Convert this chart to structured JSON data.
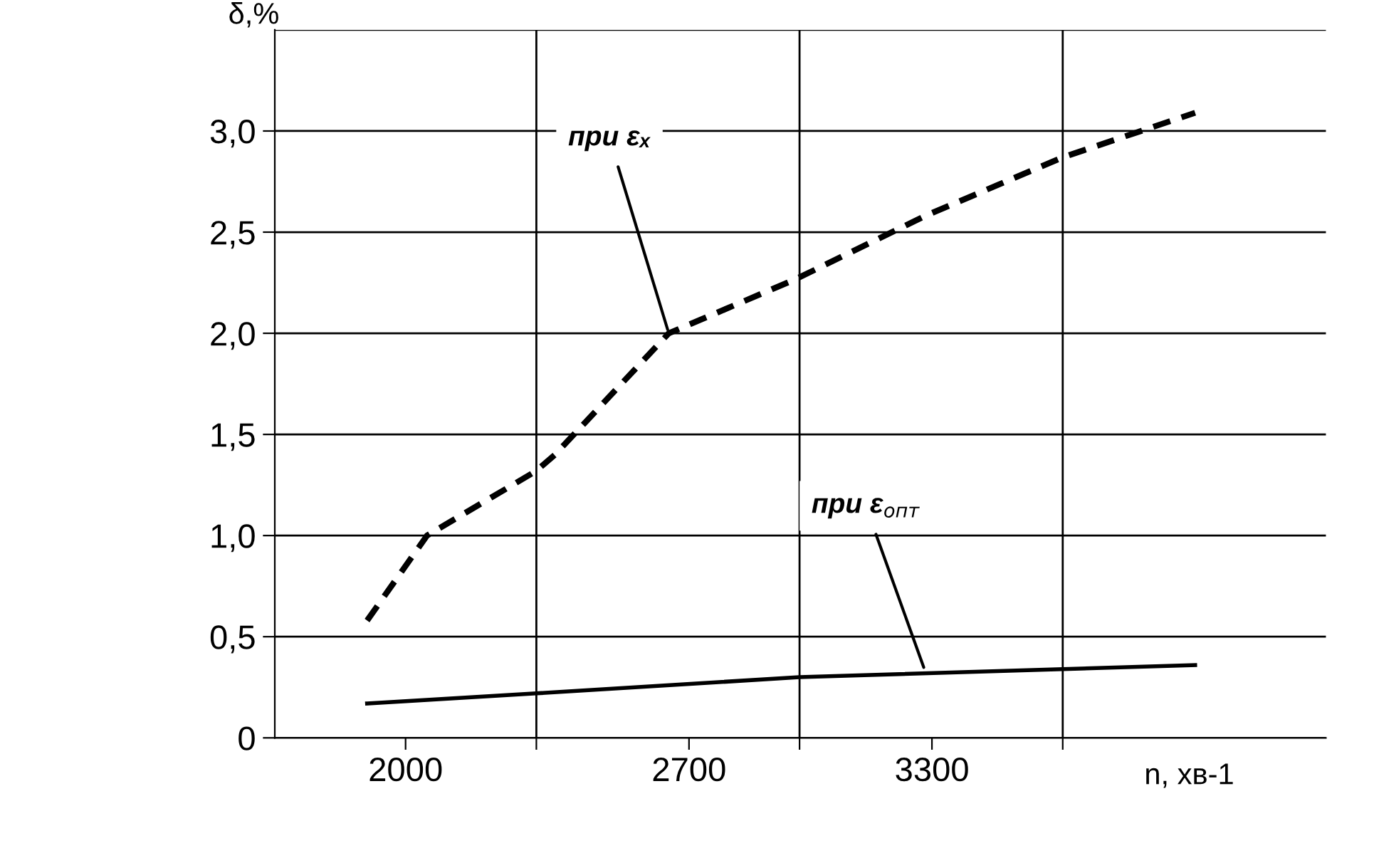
{
  "chart_data": {
    "type": "line",
    "ylabel": "δ,%",
    "xlabel": "n, хв-1",
    "xlim": [
      1677,
      4273
    ],
    "ylim": [
      0,
      3.5
    ],
    "xticks": [
      2000,
      2700,
      3300,
      {
        "value": 2323,
        "label": null
      },
      {
        "value": 2973,
        "label": null
      },
      {
        "value": 3623,
        "label": null
      }
    ],
    "yticks": [
      {
        "value": 0,
        "label": "0"
      },
      {
        "value": 0.5,
        "label": "0,5"
      },
      {
        "value": 1,
        "label": "1,0"
      },
      {
        "value": 1.5,
        "label": "1,5"
      },
      {
        "value": 2,
        "label": "2,0"
      },
      {
        "value": 2.5,
        "label": "2,5"
      },
      {
        "value": 3,
        "label": "3,0"
      }
    ],
    "grid": true,
    "legend": false,
    "series": [
      {
        "color": "#000000",
        "line_style": "dashed",
        "x": [
          1905,
          2053,
          2323,
          2369,
          2650,
          2966,
          3283,
          3623,
          3950
        ],
        "values": [
          0.58,
          1.0,
          1.32,
          1.4,
          2.0,
          2.27,
          2.58,
          2.87,
          3.09
        ]
      },
      {
        "color": "#000000",
        "line_style": "solid",
        "x": [
          1905,
          2323,
          2973,
          3623,
          3950
        ],
        "values": [
          0.17,
          0.22,
          0.3,
          0.34,
          0.36
        ]
      }
    ],
    "annotations": [
      {
        "text": "при εₓ",
        "x": 2650,
        "y": 2.0
      },
      {
        "text": "при ε$_{опт}$",
        "x": 3283,
        "y": 0.33
      }
    ]
  }
}
